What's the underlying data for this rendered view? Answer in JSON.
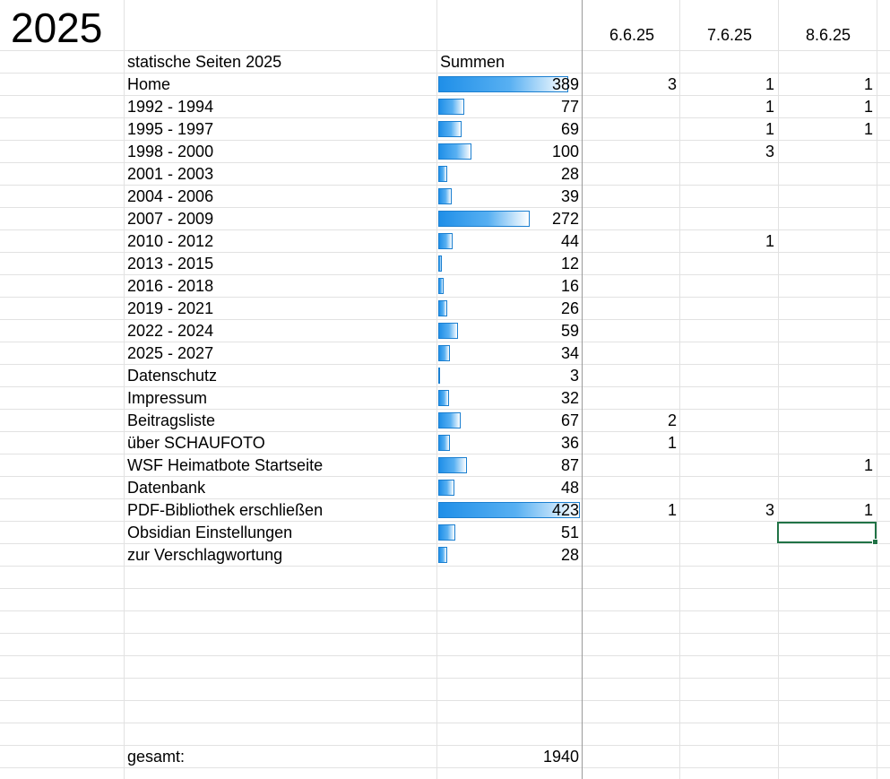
{
  "year_title": "2025",
  "dates": [
    "6.6.25",
    "7.6.25",
    "8.6.25"
  ],
  "header": {
    "pages_label": "statische Seiten 2025",
    "sums_label": "Summen"
  },
  "rows": [
    {
      "label": "Home",
      "sum": "389",
      "d1": "3",
      "d2": "1",
      "d3": "1"
    },
    {
      "label": "1992 - 1994",
      "sum": "77",
      "d1": "",
      "d2": "1",
      "d3": "1"
    },
    {
      "label": "1995 - 1997",
      "sum": "69",
      "d1": "",
      "d2": "1",
      "d3": "1"
    },
    {
      "label": "1998 - 2000",
      "sum": "100",
      "d1": "",
      "d2": "3",
      "d3": ""
    },
    {
      "label": "2001 - 2003",
      "sum": "28",
      "d1": "",
      "d2": "",
      "d3": ""
    },
    {
      "label": "2004 - 2006",
      "sum": "39",
      "d1": "",
      "d2": "",
      "d3": ""
    },
    {
      "label": "2007 - 2009",
      "sum": "272",
      "d1": "",
      "d2": "",
      "d3": ""
    },
    {
      "label": "2010 - 2012",
      "sum": "44",
      "d1": "",
      "d2": "1",
      "d3": ""
    },
    {
      "label": "2013 - 2015",
      "sum": "12",
      "d1": "",
      "d2": "",
      "d3": ""
    },
    {
      "label": "2016 - 2018",
      "sum": "16",
      "d1": "",
      "d2": "",
      "d3": ""
    },
    {
      "label": "2019 - 2021",
      "sum": "26",
      "d1": "",
      "d2": "",
      "d3": ""
    },
    {
      "label": "2022 - 2024",
      "sum": "59",
      "d1": "",
      "d2": "",
      "d3": ""
    },
    {
      "label": "2025 - 2027",
      "sum": "34",
      "d1": "",
      "d2": "",
      "d3": ""
    },
    {
      "label": "Datenschutz",
      "sum": "3",
      "d1": "",
      "d2": "",
      "d3": ""
    },
    {
      "label": "Impressum",
      "sum": "32",
      "d1": "",
      "d2": "",
      "d3": ""
    },
    {
      "label": "Beitragsliste",
      "sum": "67",
      "d1": "2",
      "d2": "",
      "d3": ""
    },
    {
      "label": "über SCHAUFOTO",
      "sum": "36",
      "d1": "1",
      "d2": "",
      "d3": ""
    },
    {
      "label": "WSF Heimatbote Startseite",
      "sum": "87",
      "d1": "",
      "d2": "",
      "d3": "1"
    },
    {
      "label": "Datenbank",
      "sum": "48",
      "d1": "",
      "d2": "",
      "d3": ""
    },
    {
      "label": "PDF-Bibliothek erschließen",
      "sum": "423",
      "d1": "1",
      "d2": "3",
      "d3": "1"
    },
    {
      "label": "Obsidian Einstellungen",
      "sum": "51",
      "d1": "",
      "d2": "",
      "d3": ""
    },
    {
      "label": "zur Verschlagwortung",
      "sum": "28",
      "d1": "",
      "d2": "",
      "d3": ""
    }
  ],
  "total": {
    "label": "gesamt:",
    "value": "1940"
  },
  "colors": {
    "databar": "#1f8fe8",
    "gridline": "#e2e2e2",
    "selection": "#217346"
  }
}
